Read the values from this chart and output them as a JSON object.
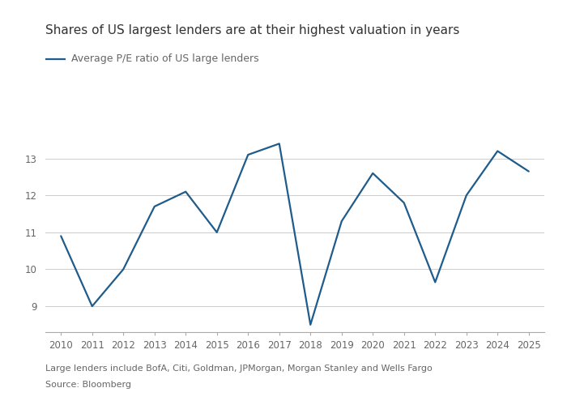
{
  "title": "Shares of US largest lenders are at their highest valuation in years",
  "legend_label": "Average P/E ratio of US large lenders",
  "footnote1": "Large lenders include BofA, Citi, Goldman, JPMorgan, Morgan Stanley and Wells Fargo",
  "footnote2": "Source: Bloomberg",
  "line_color": "#1f5c8b",
  "years": [
    2010,
    2011,
    2012,
    2013,
    2014,
    2015,
    2016,
    2017,
    2018,
    2019,
    2020,
    2021,
    2022,
    2023,
    2024,
    2025
  ],
  "values": [
    10.9,
    9.0,
    10.0,
    11.7,
    12.1,
    11.0,
    13.1,
    13.4,
    8.5,
    11.3,
    12.6,
    11.8,
    9.65,
    12.0,
    13.2,
    12.65
  ],
  "ylim": [
    8.3,
    14.0
  ],
  "yticks": [
    9,
    10,
    11,
    12,
    13
  ],
  "xlim": [
    2009.5,
    2025.5
  ],
  "xticks": [
    2010,
    2011,
    2012,
    2013,
    2014,
    2015,
    2016,
    2017,
    2018,
    2019,
    2020,
    2021,
    2022,
    2023,
    2024,
    2025
  ],
  "background_color": "#ffffff",
  "grid_color": "#cccccc",
  "title_fontsize": 11,
  "legend_fontsize": 9,
  "tick_fontsize": 8.5,
  "footnote_fontsize": 8,
  "line_width": 1.6,
  "title_color": "#333333",
  "tick_color": "#666666",
  "footnote_color": "#666666"
}
